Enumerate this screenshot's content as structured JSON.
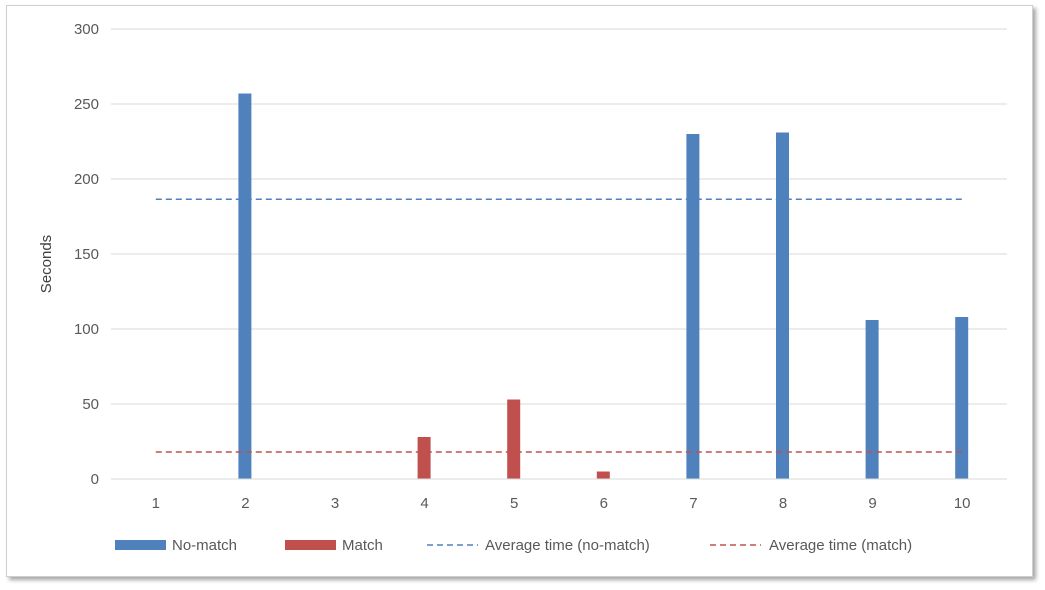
{
  "chart_data": {
    "type": "bar",
    "title": "",
    "xlabel": "",
    "ylabel": "Seconds",
    "categories": [
      "1",
      "2",
      "3",
      "4",
      "5",
      "6",
      "7",
      "8",
      "9",
      "10"
    ],
    "ylim": [
      0,
      300
    ],
    "yticks": [
      0,
      50,
      100,
      150,
      200,
      250,
      300
    ],
    "grid": true,
    "legend_position": "bottom",
    "series": [
      {
        "name": "No-match",
        "color": "#4f81bd",
        "values": [
          0,
          257,
          0,
          0,
          0,
          0,
          230,
          231,
          106,
          108
        ]
      },
      {
        "name": "Match",
        "color": "#c0504d",
        "values": [
          0,
          0,
          0,
          28,
          53,
          5,
          0,
          0,
          0,
          0
        ]
      }
    ],
    "reference_lines": [
      {
        "name": "Average time (no-match)",
        "color": "#4f81bd",
        "style": "dashed",
        "value": 186.5
      },
      {
        "name": "Average time (match)",
        "color": "#c0504d",
        "style": "dashed",
        "value": 18
      }
    ]
  }
}
